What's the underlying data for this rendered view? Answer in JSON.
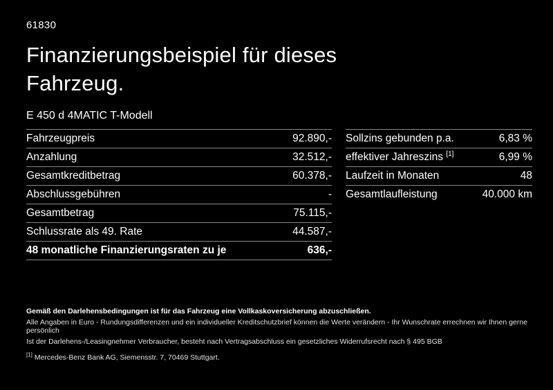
{
  "page": {
    "vehicle_id": "61830",
    "title": "Finanzierungsbeispiel für dieses Fahrzeug.",
    "model": "E 450 d 4MATIC T-Modell"
  },
  "colors": {
    "background": "#000000",
    "text": "#ffffff",
    "divider": "#8a8a8a"
  },
  "finance_table": {
    "rows": [
      {
        "label": "Fahrzeugpreis",
        "value": "92.890,-"
      },
      {
        "label": "Anzahlung",
        "value": "32.512,-"
      },
      {
        "label": "Gesamtkreditbetrag",
        "value": "60.378,-"
      },
      {
        "label": "Abschlussgebühren",
        "value": "-"
      },
      {
        "label": "Gesamtbetrag",
        "value": "75.115,-"
      },
      {
        "label": "Schlussrate als 49. Rate",
        "value": "44.587,-"
      },
      {
        "label": "48 monatliche Finanzierungsraten zu je",
        "value": "636,-"
      }
    ]
  },
  "conditions_table": {
    "rows": [
      {
        "label": "Sollzins gebunden p.a.",
        "value": "6,83 %"
      },
      {
        "label": "effektiver Jahreszins",
        "sup": "[1]",
        "value": "6,99 %"
      },
      {
        "label": "Laufzeit in Monaten",
        "value": "48"
      },
      {
        "label": "Gesamtlaufleistung",
        "value": "40.000 km"
      }
    ]
  },
  "footer": {
    "bold_note": "Gemäß den Darlehensbedingungen ist für das Fahrzeug eine Vollkaskoversicherung abzuschließen.",
    "note1": "Alle Angaben in Euro - Rundungsdifferenzen und ein individueller Kreditschutzbrief können die Werte verändern - Ihr Wunschrate errechnen wir Ihnen gerne persönlich",
    "note2": "Ist der Darlehens-/Leasingnehmer Verbraucher, besteht nach Vertragsabschluss ein gesetzliches Widerrufsrecht nach § 495 BGB",
    "footnote_marker": "[1]",
    "footnote": "Mercedes-Benz Bank AG, Siemensstr. 7, 70469 Stuttgart."
  }
}
